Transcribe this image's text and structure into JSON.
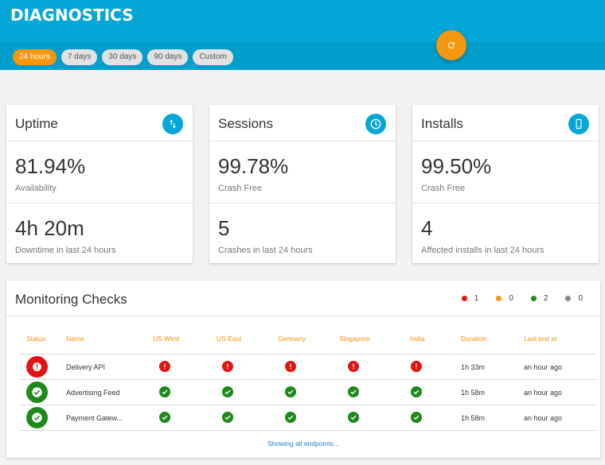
{
  "app": {
    "title": "DIAGNOSTICS",
    "refresh_icon": "refresh-icon",
    "accent": "#03a6d6",
    "orange": "#f7960f"
  },
  "ranges": [
    {
      "label": "24 hours",
      "active": true
    },
    {
      "label": "7 days"
    },
    {
      "label": "30 days"
    },
    {
      "label": "90 days"
    },
    {
      "label": "Custom"
    }
  ],
  "cards": [
    {
      "title": "Uptime",
      "icon": "arrows-vertical-icon",
      "primary": {
        "value": "81.94%",
        "label": "Availability"
      },
      "secondary": {
        "value": "4h 20m",
        "label": "Downtime in last 24 hours"
      }
    },
    {
      "title": "Sessions",
      "icon": "clock-icon",
      "primary": {
        "value": "99.78%",
        "label": "Crash Free"
      },
      "secondary": {
        "value": "5",
        "label": "Crashes in last 24 hours"
      }
    },
    {
      "title": "Installs",
      "icon": "phone-icon",
      "primary": {
        "value": "99.50%",
        "label": "Crash Free"
      },
      "secondary": {
        "value": "4",
        "label": "Affected installs in last 24 hours"
      }
    }
  ],
  "monitoring": {
    "title": "Monitoring Checks",
    "legend": [
      {
        "count": "1",
        "color": "#e31313"
      },
      {
        "count": "0",
        "color": "#f7960f"
      },
      {
        "count": "2",
        "color": "#1c8a18"
      },
      {
        "count": "0",
        "color": "#888888"
      }
    ],
    "columns": [
      "Status",
      "Name",
      "US West",
      "US East",
      "Germany",
      "Singapore",
      "India",
      "Duration",
      "Last test at"
    ],
    "rows": [
      {
        "status": "error",
        "name": "Delivery API",
        "regions": [
          "error",
          "error",
          "error",
          "error",
          "error"
        ],
        "duration": "1h 33m",
        "last": "an hour ago"
      },
      {
        "status": "ok",
        "name": "Advertising Feed",
        "regions": [
          "ok",
          "ok",
          "ok",
          "ok",
          "ok"
        ],
        "duration": "1h 58m",
        "last": "an hour ago"
      },
      {
        "status": "ok",
        "name": "Payment Gatew...",
        "regions": [
          "ok",
          "ok",
          "ok",
          "ok",
          "ok"
        ],
        "duration": "1h 58m",
        "last": "an hour ago"
      }
    ],
    "footer": "Showing all endpoints..."
  }
}
